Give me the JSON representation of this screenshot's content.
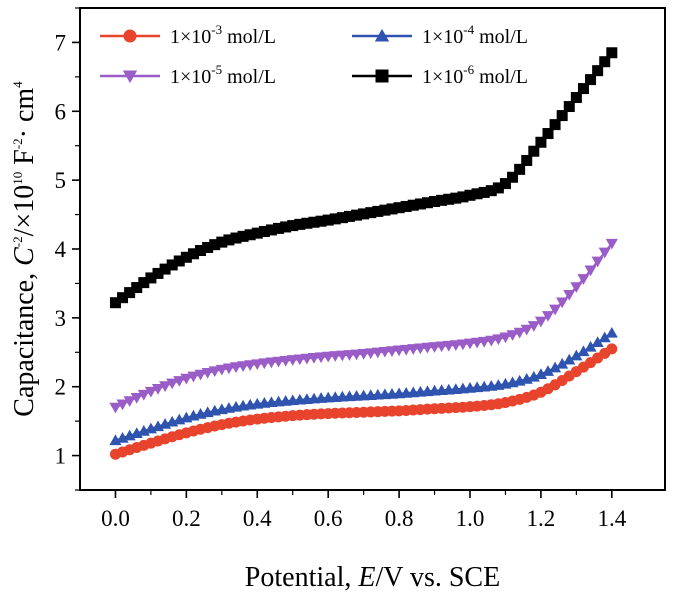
{
  "chart_data": {
    "type": "scatter",
    "xlabel": {
      "prefix": "Potential, ",
      "italic": "E",
      "suffix": "/V vs. SCE"
    },
    "ylabel": {
      "prefix": "Capacitance, ",
      "c_italic": "C",
      "c_exp": "-2",
      "mid": "/×10",
      "ten_exp": "10",
      "f": " F",
      "f_exp": "-2",
      "cm": "· cm",
      "cm_exp": "4"
    },
    "xlim": [
      -0.1,
      1.55
    ],
    "ylim": [
      0.5,
      7.5
    ],
    "xticks": [
      "0.0",
      "0.2",
      "0.4",
      "0.6",
      "0.8",
      "1.0",
      "1.2",
      "1.4"
    ],
    "yticks": [
      "1",
      "2",
      "3",
      "4",
      "5",
      "6",
      "7"
    ],
    "grid": false,
    "legend_position": "top",
    "series": [
      {
        "name": "1×10-3 mol/L",
        "label_base": "1×10",
        "label_exp": "-3",
        "label_unit": " mol/L",
        "color": "#e8432d",
        "marker": "circle",
        "points": [
          [
            0.0,
            1.02
          ],
          [
            0.1,
            1.18
          ],
          [
            0.2,
            1.33
          ],
          [
            0.3,
            1.45
          ],
          [
            0.4,
            1.53
          ],
          [
            0.5,
            1.58
          ],
          [
            0.6,
            1.61
          ],
          [
            0.7,
            1.63
          ],
          [
            0.8,
            1.65
          ],
          [
            0.9,
            1.68
          ],
          [
            1.0,
            1.71
          ],
          [
            1.1,
            1.77
          ],
          [
            1.2,
            1.92
          ],
          [
            1.3,
            2.22
          ],
          [
            1.4,
            2.55
          ]
        ]
      },
      {
        "name": "1×10-4 mol/L",
        "label_base": "1×10",
        "label_exp": "-4",
        "label_unit": " mol/L",
        "color": "#2f54b0",
        "marker": "triangle-up",
        "points": [
          [
            0.0,
            1.22
          ],
          [
            0.1,
            1.39
          ],
          [
            0.2,
            1.55
          ],
          [
            0.3,
            1.67
          ],
          [
            0.4,
            1.75
          ],
          [
            0.5,
            1.8
          ],
          [
            0.6,
            1.84
          ],
          [
            0.7,
            1.87
          ],
          [
            0.8,
            1.9
          ],
          [
            0.9,
            1.94
          ],
          [
            1.0,
            1.98
          ],
          [
            1.1,
            2.04
          ],
          [
            1.2,
            2.18
          ],
          [
            1.3,
            2.45
          ],
          [
            1.4,
            2.78
          ]
        ]
      },
      {
        "name": "1×10-5 mol/L",
        "label_base": "1×10",
        "label_exp": "-5",
        "label_unit": " mol/L",
        "color": "#9a5cc6",
        "marker": "triangle-down",
        "points": [
          [
            0.0,
            1.7
          ],
          [
            0.1,
            1.93
          ],
          [
            0.2,
            2.12
          ],
          [
            0.3,
            2.25
          ],
          [
            0.4,
            2.33
          ],
          [
            0.5,
            2.39
          ],
          [
            0.6,
            2.44
          ],
          [
            0.7,
            2.48
          ],
          [
            0.8,
            2.53
          ],
          [
            0.9,
            2.58
          ],
          [
            1.0,
            2.63
          ],
          [
            1.1,
            2.72
          ],
          [
            1.2,
            2.95
          ],
          [
            1.3,
            3.45
          ],
          [
            1.4,
            4.08
          ]
        ]
      },
      {
        "name": "1×10-6 mol/L",
        "label_base": "1×10",
        "label_exp": "-6",
        "label_unit": " mol/L",
        "color": "#000000",
        "marker": "square",
        "points": [
          [
            0.0,
            3.22
          ],
          [
            0.1,
            3.58
          ],
          [
            0.2,
            3.88
          ],
          [
            0.3,
            4.1
          ],
          [
            0.4,
            4.23
          ],
          [
            0.5,
            4.34
          ],
          [
            0.6,
            4.42
          ],
          [
            0.7,
            4.51
          ],
          [
            0.8,
            4.6
          ],
          [
            0.9,
            4.69
          ],
          [
            1.0,
            4.78
          ],
          [
            1.1,
            4.95
          ],
          [
            1.2,
            5.55
          ],
          [
            1.3,
            6.2
          ],
          [
            1.4,
            6.85
          ]
        ]
      }
    ]
  }
}
